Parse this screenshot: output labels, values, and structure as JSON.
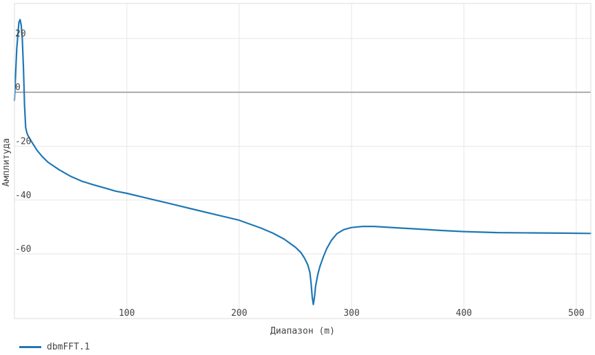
{
  "chart_data": {
    "type": "line",
    "title": "",
    "xlabel": "Диапазон (m)",
    "ylabel": "Амплитуда",
    "xlim": [
      0,
      513
    ],
    "ylim": [
      -84,
      33
    ],
    "x_ticks": [
      100,
      200,
      300,
      400,
      500
    ],
    "y_ticks": [
      20,
      0,
      -20,
      -40,
      -60
    ],
    "grid": true,
    "legend": "bottom-left",
    "colors": {
      "line": "#1f77b4",
      "zero_line": "#aaaaaa",
      "grid": "#e6e6e6"
    },
    "series": [
      {
        "name": "dbmFFT.1",
        "x": [
          0,
          2,
          4,
          5,
          6,
          7,
          8,
          9,
          10,
          11,
          12,
          14,
          17,
          20,
          25,
          30,
          40,
          50,
          60,
          70,
          80,
          90,
          100,
          120,
          140,
          160,
          180,
          200,
          210,
          220,
          230,
          240,
          250,
          255,
          258,
          261,
          263,
          264,
          265,
          266,
          267,
          268,
          270,
          272,
          275,
          278,
          282,
          287,
          293,
          300,
          310,
          320,
          340,
          360,
          380,
          400,
          430,
          460,
          490,
          513
        ],
        "y": [
          -3,
          16,
          26,
          27,
          25,
          20,
          9,
          -5,
          -13,
          -15,
          -16,
          -17.5,
          -19.5,
          -21.5,
          -24,
          -26,
          -28.8,
          -31.2,
          -33,
          -34.3,
          -35.5,
          -36.7,
          -37.5,
          -39.5,
          -41.5,
          -43.5,
          -45.5,
          -47.5,
          -49,
          -50.5,
          -52.3,
          -54.5,
          -57.5,
          -59.5,
          -61.5,
          -64,
          -67,
          -71,
          -76,
          -78.8,
          -76,
          -72,
          -67.5,
          -64.5,
          -61,
          -58,
          -55,
          -52.5,
          -51,
          -50.2,
          -49.8,
          -49.8,
          -50.3,
          -50.8,
          -51.3,
          -51.7,
          -52.1,
          -52.2,
          -52.3,
          -52.4
        ]
      }
    ]
  }
}
